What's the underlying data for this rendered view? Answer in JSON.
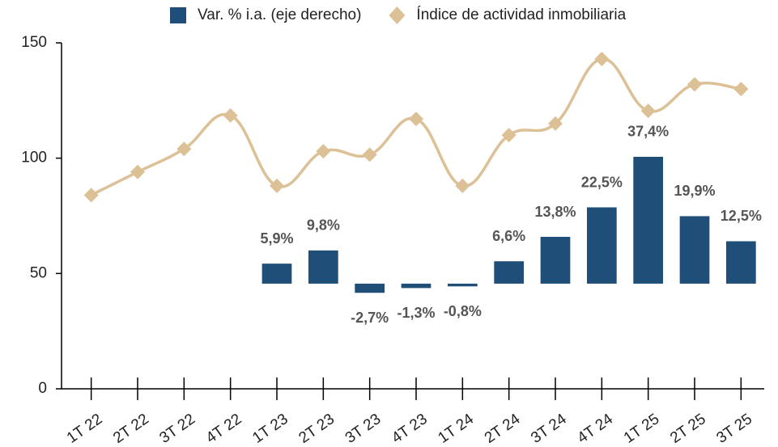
{
  "chart_data": {
    "type": "bar-line",
    "categories": [
      "1T 22",
      "2T 22",
      "3T 22",
      "4T 22",
      "1T 23",
      "2T 23",
      "3T 23",
      "4T 23",
      "1T 24",
      "2T 24",
      "3T 24",
      "4T 24",
      "1T 25",
      "2T 25",
      "3T 25"
    ],
    "series": [
      {
        "name": "Var. % i.a. (eje derecho)",
        "type": "bar",
        "axis": "y2",
        "color": "#1f4e79",
        "values": [
          null,
          null,
          null,
          null,
          5.9,
          9.8,
          -2.7,
          -1.3,
          -0.8,
          6.6,
          13.8,
          22.5,
          37.4,
          19.9,
          12.5
        ],
        "value_labels": [
          null,
          null,
          null,
          null,
          "5,9%",
          "9,8%",
          "-2,7%",
          "-1,3%",
          "-0,8%",
          "6,6%",
          "13,8%",
          "22,5%",
          "37,4%",
          "19,9%",
          "12,5%"
        ]
      },
      {
        "name": "Índice de actividad inmobiliaria",
        "type": "line",
        "color": "#dcc096",
        "values": [
          84,
          94,
          104,
          118.5,
          88,
          103,
          101.5,
          117,
          88,
          110,
          115,
          143,
          120.5,
          132,
          130
        ]
      }
    ],
    "ylim": [
      0,
      150
    ],
    "yticks": [
      0,
      50,
      100,
      150
    ],
    "y2lim": [
      -31,
      71
    ]
  }
}
